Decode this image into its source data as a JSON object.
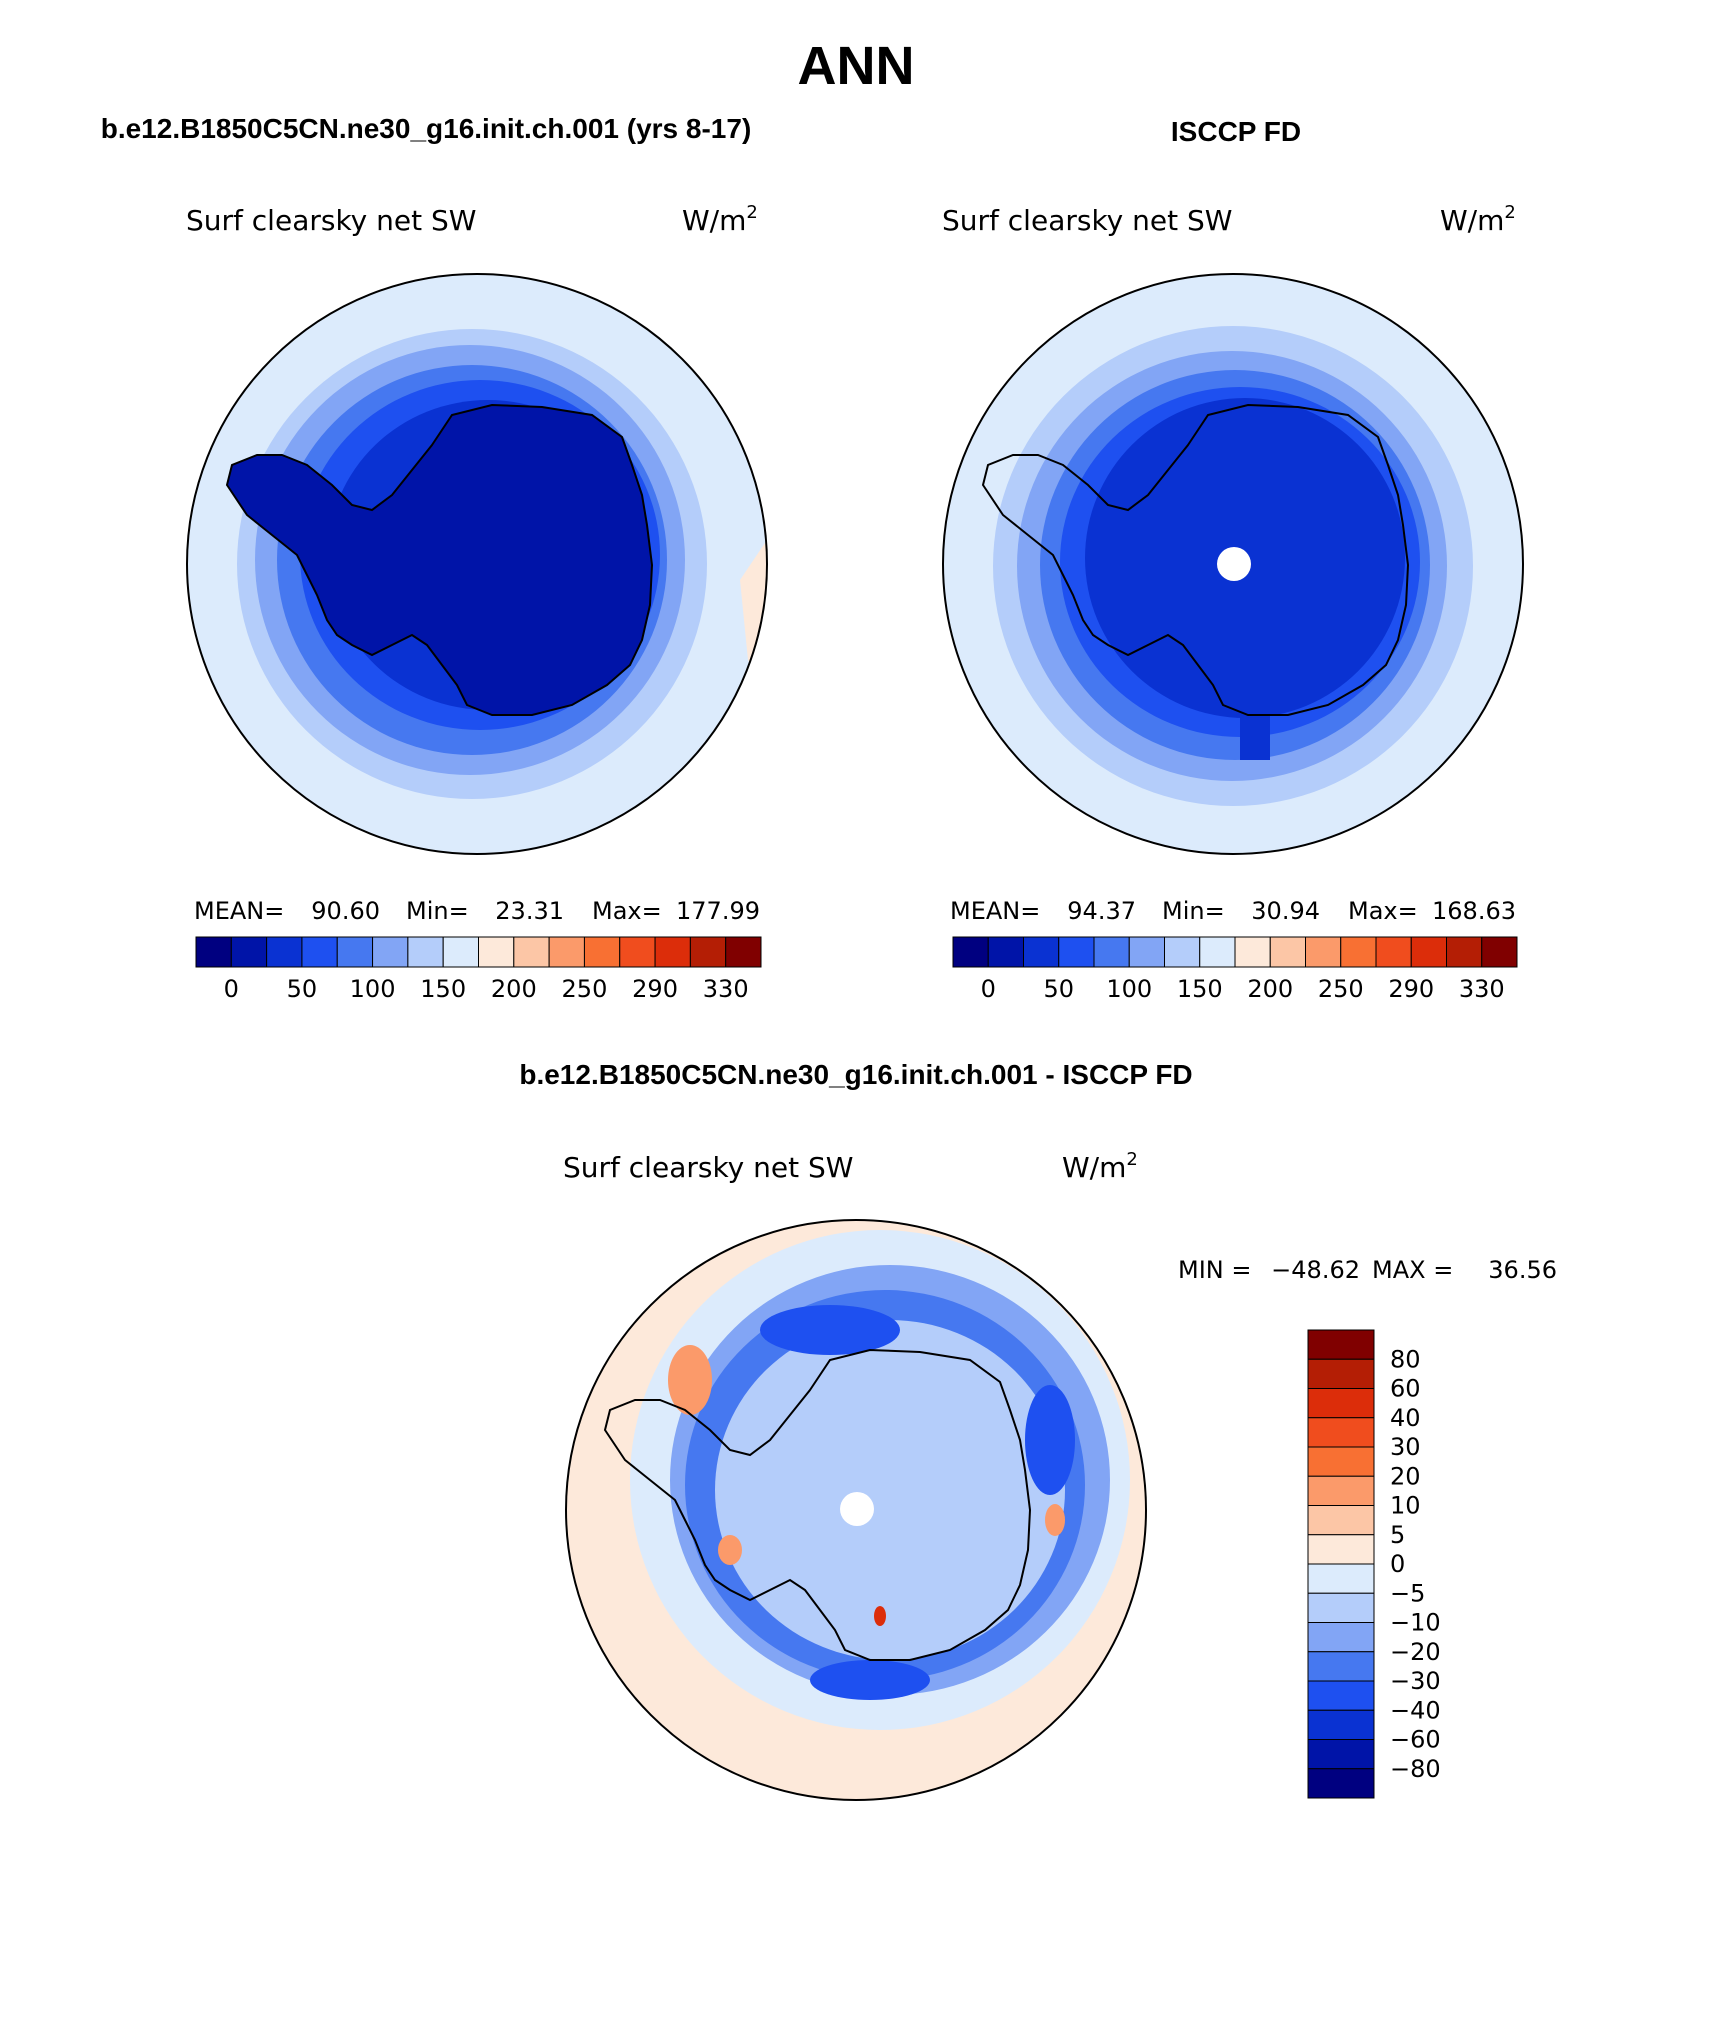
{
  "figure_title": "ANN",
  "panels": [
    {
      "id": "model",
      "case_title": "b.e12.B1850C5CN.ne30_g16.init.ch.001 (yrs 8-17)",
      "variable": "Surf clearsky net SW",
      "units": "W/m",
      "units_exp": "2",
      "stats": {
        "mean_label": "MEAN=",
        "mean": "90.60",
        "min_label": "Min=",
        "min": "23.31",
        "max_label": "Max=",
        "max": "177.99"
      },
      "pole_hole": false
    },
    {
      "id": "obs",
      "case_title": "ISCCP FD",
      "variable": "Surf clearsky net SW",
      "units": "W/m",
      "units_exp": "2",
      "stats": {
        "mean_label": "MEAN=",
        "mean": "94.37",
        "min_label": "Min=",
        "min": "30.94",
        "max_label": "Max=",
        "max": "168.63"
      },
      "pole_hole": true
    }
  ],
  "abs_colorbar": {
    "colors": [
      "#000080",
      "#0014a8",
      "#0a32d2",
      "#1e50f0",
      "#4678f0",
      "#82a5f5",
      "#b4cdfa",
      "#dcebfc",
      "#fde9da",
      "#fcc6a6",
      "#fb9a6a",
      "#f87033",
      "#f04d1e",
      "#dc2d0a",
      "#b41e05",
      "#800000"
    ],
    "labels": [
      "0",
      "50",
      "100",
      "150",
      "200",
      "250",
      "290",
      "330"
    ]
  },
  "diff_panel": {
    "case_title": "b.e12.B1850C5CN.ne30_g16.init.ch.001 - ISCCP FD",
    "variable": "Surf clearsky net SW",
    "units": "W/m",
    "units_exp": "2",
    "min_label": "MIN =",
    "min": "-48.62",
    "max_label": "MAX =",
    "max": "36.56"
  },
  "diff_colorbar": {
    "colors_top_to_bottom": [
      "#800000",
      "#b41e05",
      "#dc2d0a",
      "#f04d1e",
      "#f87033",
      "#fb9a6a",
      "#fcc6a6",
      "#fde9da",
      "#dcebfc",
      "#b4cdfa",
      "#82a5f5",
      "#4678f0",
      "#1e50f0",
      "#0a32d2",
      "#0014a8",
      "#000080"
    ],
    "labels_top_to_bottom": [
      "80",
      "60",
      "40",
      "30",
      "20",
      "10",
      "5",
      "0",
      "-5",
      "-10",
      "-20",
      "-30",
      "-40",
      "-60",
      "-80"
    ]
  },
  "colors": {
    "c_outer": "#dcebfc",
    "c_light": "#b4cdfa",
    "c_mid": "#82a5f5",
    "c_blue": "#4678f0",
    "c_bright": "#1e50f0",
    "c_deep": "#0a32d2",
    "c_darker": "#0014a8",
    "c_warm": "#fde9da",
    "c_orange": "#fb9a6a",
    "c_red": "#dc2d0a"
  }
}
